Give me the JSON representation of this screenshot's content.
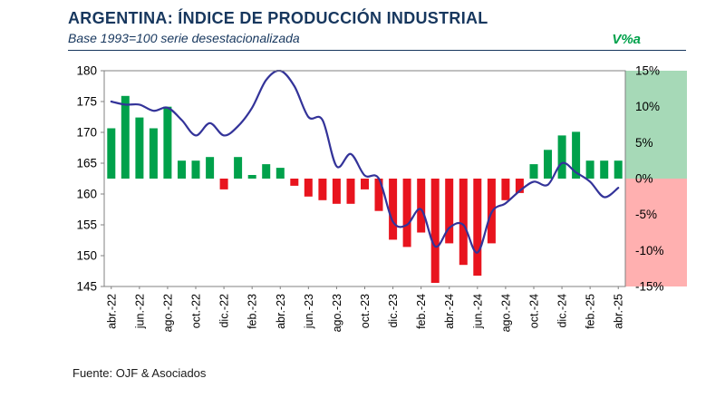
{
  "header": {
    "title": "ARGENTINA: ÍNDICE DE PRODUCCIÓN INDUSTRIAL",
    "subtitle": "Base 1993=100 serie desestacionalizada",
    "right_axis_label": "V%a"
  },
  "footer": {
    "source": "Fuente: OJF & Asociados"
  },
  "colors": {
    "title_text": "#17375E",
    "accent_line": "#333399",
    "bar_positive": "#00A14B",
    "bar_negative": "#E8141E",
    "band_positive": "#A6D9B7",
    "band_negative": "#FFB0B0",
    "plot_border": "#808080"
  },
  "chart_data": {
    "type": "combo",
    "title": "ARGENTINA: ÍNDICE DE PRODUCCIÓN INDUSTRIAL",
    "subtitle": "Base 1993=100 serie desestacionalizada",
    "categories": [
      "abr.-22",
      "may.-22",
      "jun.-22",
      "jul.-22",
      "ago.-22",
      "sep.-22",
      "oct.-22",
      "nov.-22",
      "dic.-22",
      "ene.-23",
      "feb.-23",
      "mar.-23",
      "abr.-23",
      "may.-23",
      "jun.-23",
      "jul.-23",
      "ago.-23",
      "sep.-23",
      "oct.-23",
      "nov.-23",
      "dic.-23",
      "ene.-24",
      "feb.-24",
      "mar.-24",
      "abr.-24",
      "may.-24",
      "jun.-24",
      "jul.-24",
      "ago.-24",
      "sep.-24",
      "oct.-24",
      "nov.-24",
      "dic.-24",
      "ene.-25",
      "feb.-25",
      "mar.-25",
      "abr.-25"
    ],
    "x_tick_step": 2,
    "series": [
      {
        "name": "Índice (base 1993=100)",
        "type": "line",
        "axis": "left",
        "values": [
          175,
          174.5,
          174.5,
          173.5,
          174,
          172,
          169.5,
          171.5,
          169.5,
          171,
          174,
          178.5,
          180,
          177.5,
          172.5,
          172,
          164.5,
          166.5,
          163,
          162.5,
          155.5,
          155,
          157.5,
          151.5,
          154.5,
          155,
          150.5,
          157,
          158.5,
          160.5,
          162,
          161.5,
          165,
          163.5,
          162,
          159.5,
          161
        ]
      },
      {
        "name": "V%a",
        "type": "bar",
        "axis": "right",
        "values": [
          7,
          11.5,
          8.5,
          7,
          10,
          2.5,
          2.5,
          3,
          -1.5,
          3,
          0.5,
          2,
          1.5,
          -1,
          -2.5,
          -3,
          -3.5,
          -3.5,
          -1.5,
          -4.5,
          -8.5,
          -9.5,
          -7.5,
          -14.5,
          -9,
          -12,
          -13.5,
          -9,
          -3,
          -2,
          2,
          4,
          6,
          6.5,
          2.5,
          2.5,
          2.5
        ]
      }
    ],
    "left_axis": {
      "min": 145,
      "max": 180,
      "ticks": [
        180,
        175,
        170,
        165,
        160,
        155,
        150,
        145
      ]
    },
    "right_axis": {
      "min": -15,
      "max": 15,
      "ticks": [
        15,
        10,
        5,
        0,
        -5,
        -10,
        -15
      ],
      "suffix": "%",
      "label": "V%a"
    }
  }
}
